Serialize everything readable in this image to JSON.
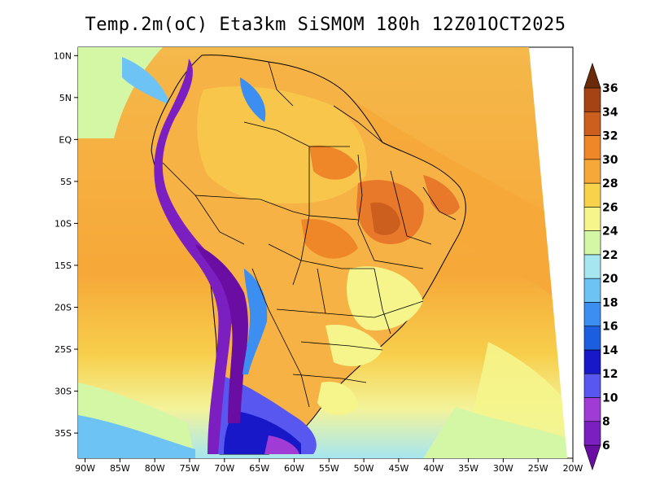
{
  "title": "Temp.2m(oC) Eta3km SiSMOM 180h 12Z01OCT2025",
  "map": {
    "variable": "2 m air temperature",
    "units": "oC",
    "lon_range": [
      -91,
      -20
    ],
    "lat_range": [
      -38,
      11
    ],
    "lon_ticks": [
      {
        "value": -90,
        "label": "90W"
      },
      {
        "value": -85,
        "label": "85W"
      },
      {
        "value": -80,
        "label": "80W"
      },
      {
        "value": -75,
        "label": "75W"
      },
      {
        "value": -70,
        "label": "70W"
      },
      {
        "value": -65,
        "label": "65W"
      },
      {
        "value": -60,
        "label": "60W"
      },
      {
        "value": -55,
        "label": "55W"
      },
      {
        "value": -50,
        "label": "50W"
      },
      {
        "value": -45,
        "label": "45W"
      },
      {
        "value": -40,
        "label": "40W"
      },
      {
        "value": -35,
        "label": "35W"
      },
      {
        "value": -30,
        "label": "30W"
      },
      {
        "value": -25,
        "label": "25W"
      },
      {
        "value": -20,
        "label": "20W"
      }
    ],
    "lat_ticks": [
      {
        "value": 10,
        "label": "10N"
      },
      {
        "value": 5,
        "label": "5N"
      },
      {
        "value": 0,
        "label": "EQ"
      },
      {
        "value": -5,
        "label": "5S"
      },
      {
        "value": -10,
        "label": "10S"
      },
      {
        "value": -15,
        "label": "15S"
      },
      {
        "value": -20,
        "label": "20S"
      },
      {
        "value": -25,
        "label": "25S"
      },
      {
        "value": -30,
        "label": "30S"
      },
      {
        "value": -35,
        "label": "35S"
      }
    ]
  },
  "colorbar": {
    "levels": [
      6,
      8,
      10,
      12,
      14,
      16,
      18,
      20,
      22,
      24,
      26,
      28,
      30,
      32,
      34,
      36
    ],
    "colors": [
      "#6a0da3",
      "#7c1fc0",
      "#a13bd6",
      "#5858f0",
      "#1818c8",
      "#1b5fe0",
      "#3c8ef0",
      "#6ec3f5",
      "#a6e6f0",
      "#d4f7a6",
      "#f5f58c",
      "#f8d24a",
      "#f6a838",
      "#ef8628",
      "#cd5f1e",
      "#a64315",
      "#6b2a0a"
    ]
  }
}
